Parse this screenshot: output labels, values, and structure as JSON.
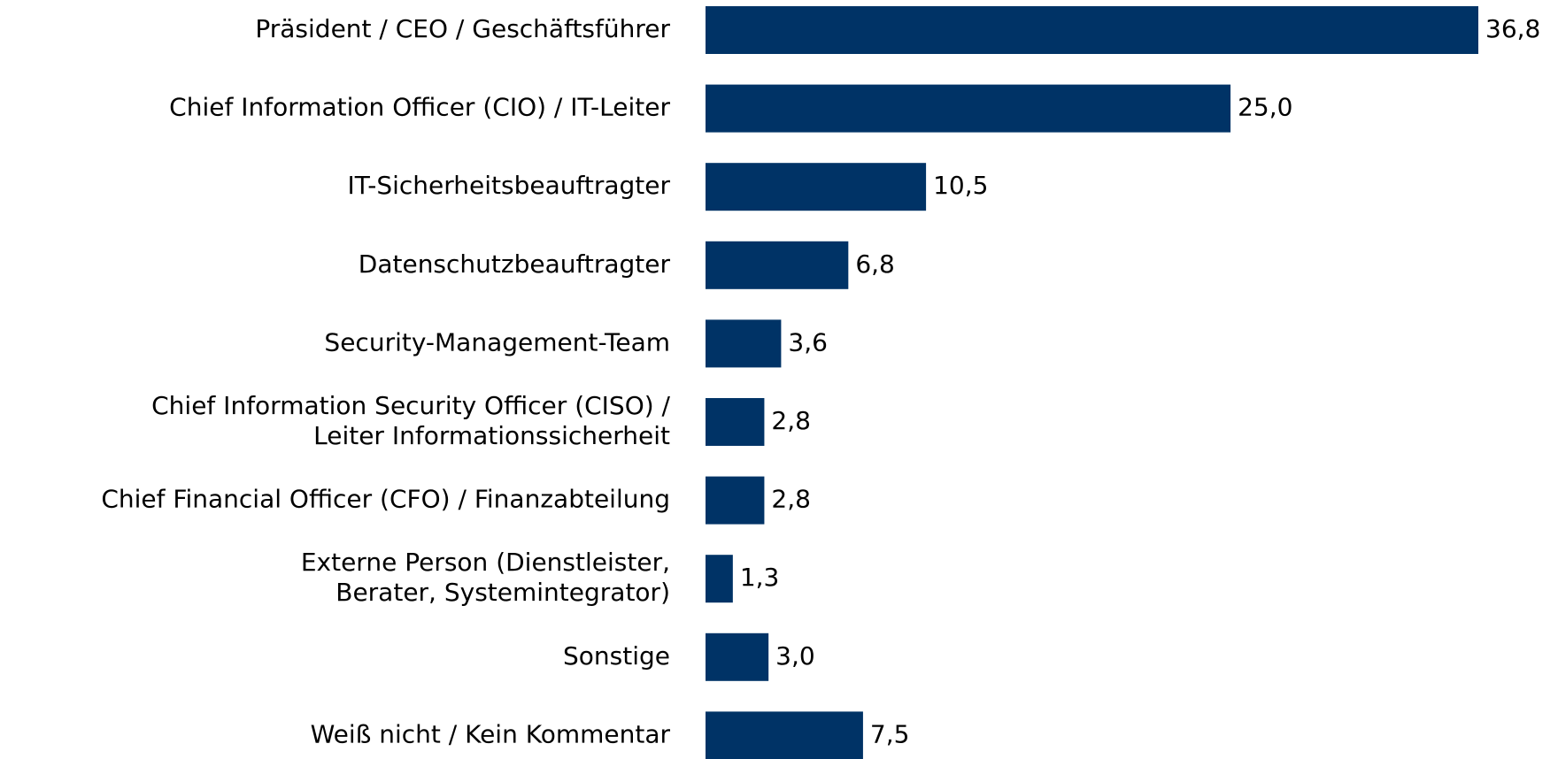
{
  "chart_data": {
    "type": "bar",
    "orientation": "horizontal",
    "color": "#003366",
    "categories": [
      "Präsident / CEO / Geschäftsführer",
      "Chief Information Officer (CIO) / IT-Leiter",
      "IT-Sicherheitsbeauftragter",
      "Datenschutzbeauftragter",
      "Security-Management-Team",
      "Chief Information Security Officer (CISO) /\nLeiter Informationssicherheit",
      "Chief Financial Officer (CFO) / Finanzabteilung",
      "Externe Person (Dienstleister,\nBerater, Systemintegrator)",
      "Sonstige",
      "Weiß nicht / Kein Kommentar"
    ],
    "values": [
      36.8,
      25.0,
      10.5,
      6.8,
      3.6,
      2.8,
      2.8,
      1.3,
      3.0,
      7.5
    ],
    "value_labels": [
      "36,8",
      "25,0",
      "10,5",
      "6,8",
      "3,6",
      "2,8",
      "2,8",
      "1,3",
      "3,0",
      "7,5"
    ]
  }
}
